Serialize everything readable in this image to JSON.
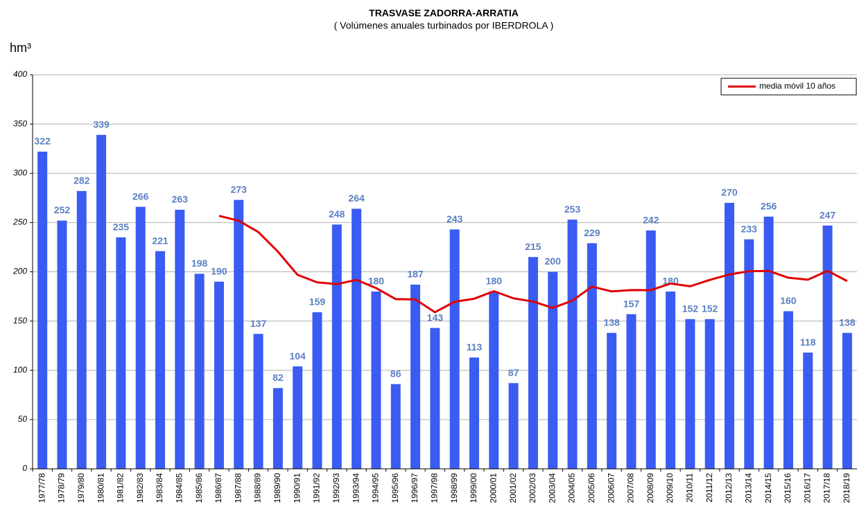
{
  "chart_data": {
    "type": "bar",
    "title": "TRASVASE ZADORRA-ARRATIA",
    "subtitle": "( Volúmenes anuales turbinados por IBERDROLA )",
    "y_label": "hm³",
    "categories": [
      "1977/78",
      "1978/79",
      "1979/80",
      "1980/81",
      "1981/82",
      "1982/83",
      "1983/84",
      "1984/85",
      "1985/86",
      "1986/87",
      "1987/88",
      "1988/89",
      "1989/90",
      "1990/91",
      "1991/92",
      "1992/93",
      "1993/94",
      "1994/95",
      "1995/96",
      "1996/97",
      "1997/98",
      "1998/99",
      "1999/00",
      "2000/01",
      "2001/02",
      "2002/03",
      "2003/04",
      "2004/05",
      "2005/06",
      "2006/07",
      "2007/08",
      "2008/09",
      "2009/10",
      "2010/11",
      "2011/12",
      "2012/13",
      "2013/14",
      "2014/15",
      "2015/16",
      "2016/17",
      "2017/18",
      "2018/19"
    ],
    "values": [
      322,
      252,
      282,
      339,
      235,
      266,
      221,
      263,
      198,
      190,
      273,
      137,
      82,
      104,
      159,
      248,
      264,
      180,
      86,
      187,
      143,
      243,
      113,
      180,
      87,
      215,
      200,
      253,
      229,
      138,
      157,
      242,
      180,
      152,
      152,
      270,
      233,
      256,
      160,
      118,
      247,
      138
    ],
    "color": "#3a5cf2",
    "value_label_color": "#5a7fc2",
    "line_series": {
      "name": "media móvil 10 años",
      "color": "#e00000",
      "values": [
        null,
        null,
        null,
        null,
        null,
        null,
        null,
        null,
        null,
        256.8,
        251.9,
        240.4,
        220.4,
        196.9,
        189.3,
        187.5,
        191.8,
        183.5,
        172.3,
        172.0,
        159.0,
        169.6,
        172.7,
        180.3,
        173.1,
        169.8,
        163.4,
        170.7,
        185.0,
        180.1,
        181.5,
        181.4,
        188.1,
        185.3,
        191.8,
        197.3,
        200.6,
        200.9,
        194.0,
        192.0,
        201.0,
        190.6
      ]
    },
    "ylim": [
      0,
      400
    ],
    "yticks": [
      0,
      50,
      100,
      150,
      200,
      250,
      300,
      350,
      400
    ],
    "grid": true,
    "legend": "top-right"
  }
}
